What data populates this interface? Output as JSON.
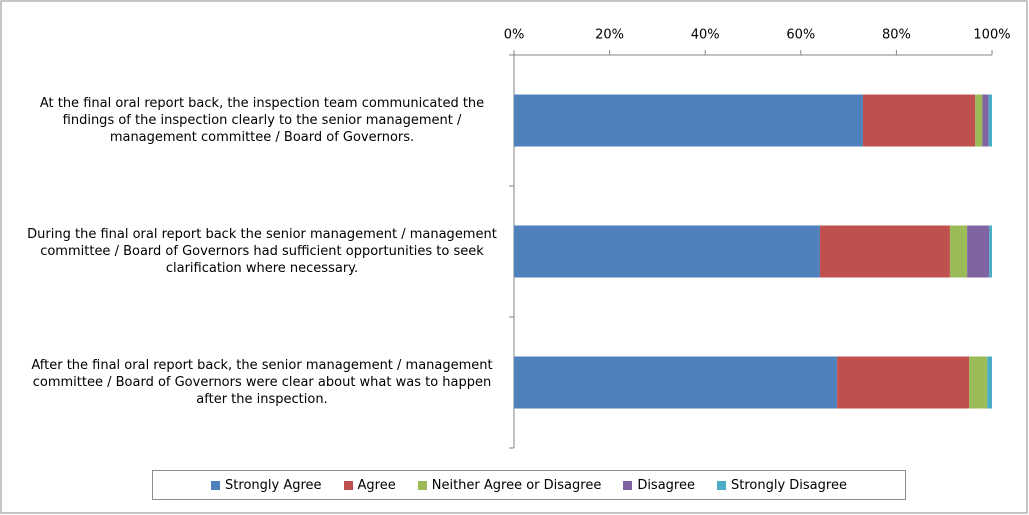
{
  "chart_data": {
    "type": "stacked_barh",
    "categories": [
      "At the final oral report back, the inspection team communicated the findings of the inspection clearly to the senior management / management committee / Board of Governors.",
      "During the final oral report back the senior management / management committee / Board of Governors had sufficient opportunities to seek clarification where necessary.",
      "After the final oral report back, the senior management / management committee / Board of Governors were clear about what was to happen after the inspection."
    ],
    "series": [
      {
        "name": "Strongly Agree",
        "color": "#4f81bd",
        "values": [
          73,
          64,
          67.6
        ]
      },
      {
        "name": "Agree",
        "color": "#c0504d",
        "values": [
          23.5,
          27.2,
          27.6
        ]
      },
      {
        "name": "Neither Agree or Disagree",
        "color": "#9bbb59",
        "values": [
          1.5,
          3.6,
          3.8
        ]
      },
      {
        "name": "Disagree",
        "color": "#8064a2",
        "values": [
          1.3,
          4.6,
          0
        ]
      },
      {
        "name": "Strongly Disagree",
        "color": "#4bacc6",
        "values": [
          0.7,
          0.6,
          1.0
        ]
      }
    ],
    "xlim": [
      0,
      100
    ],
    "xticks": [
      {
        "value": 0,
        "label": "0%"
      },
      {
        "value": 20,
        "label": "20%"
      },
      {
        "value": 40,
        "label": "40%"
      },
      {
        "value": 60,
        "label": "60%"
      },
      {
        "value": 80,
        "label": "80%"
      },
      {
        "value": 100,
        "label": "100%"
      }
    ],
    "grid": false,
    "legend": "bottom"
  }
}
